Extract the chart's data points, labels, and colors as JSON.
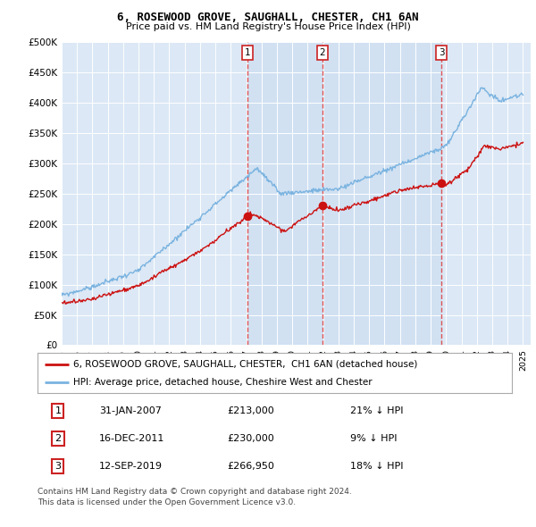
{
  "title": "6, ROSEWOOD GROVE, SAUGHALL, CHESTER, CH1 6AN",
  "subtitle": "Price paid vs. HM Land Registry's House Price Index (HPI)",
  "background_color": "#ffffff",
  "plot_bg_color": "#dce8f5",
  "ylim": [
    0,
    500000
  ],
  "yticks": [
    0,
    50000,
    100000,
    150000,
    200000,
    250000,
    300000,
    350000,
    400000,
    450000,
    500000
  ],
  "ytick_labels": [
    "£0",
    "£50K",
    "£100K",
    "£150K",
    "£200K",
    "£250K",
    "£300K",
    "£350K",
    "£400K",
    "£450K",
    "£500K"
  ],
  "sale_year_decimals": [
    2007.08,
    2011.96,
    2019.7
  ],
  "sale_prices": [
    213000,
    230000,
    266950
  ],
  "sale_labels": [
    "1",
    "2",
    "3"
  ],
  "vline_color": "#dd4444",
  "hpi_color": "#7ab3e0",
  "prop_color": "#cc1111",
  "highlight_color": "#ccddf5",
  "legend_entries": [
    "6, ROSEWOOD GROVE, SAUGHALL, CHESTER,  CH1 6AN (detached house)",
    "HPI: Average price, detached house, Cheshire West and Chester"
  ],
  "table_data": [
    [
      "1",
      "31-JAN-2007",
      "£213,000",
      "21% ↓ HPI"
    ],
    [
      "2",
      "16-DEC-2011",
      "£230,000",
      "9% ↓ HPI"
    ],
    [
      "3",
      "12-SEP-2019",
      "£266,950",
      "18% ↓ HPI"
    ]
  ],
  "footnote": "Contains HM Land Registry data © Crown copyright and database right 2024.\nThis data is licensed under the Open Government Licence v3.0.",
  "x_start_year": 1995,
  "x_end_year": 2025
}
